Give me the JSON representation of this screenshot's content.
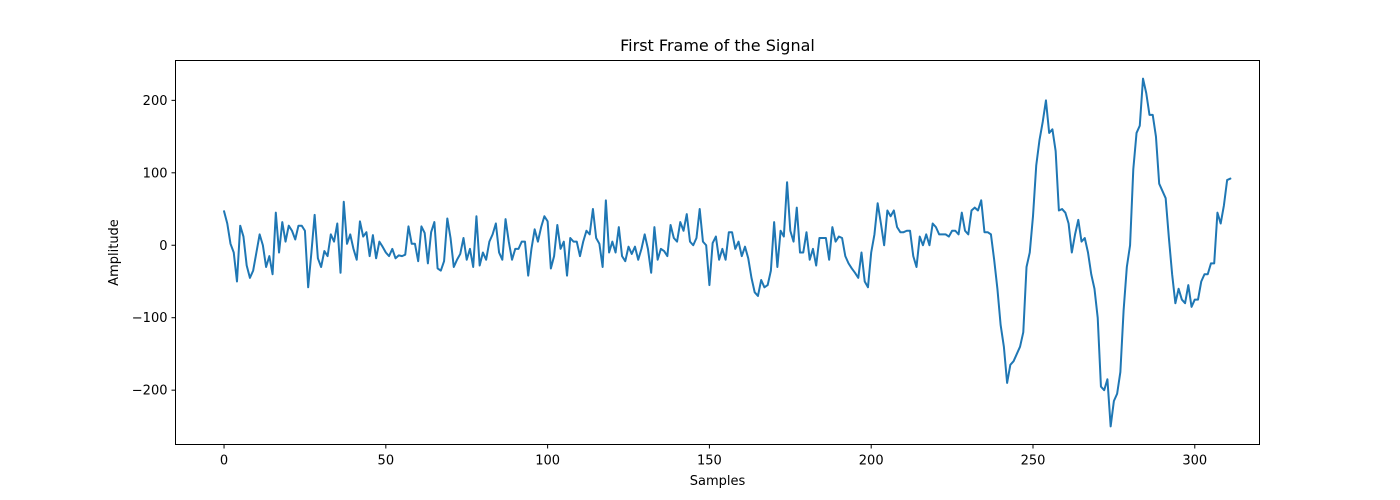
{
  "chart_data": {
    "type": "line",
    "title": "First Frame of the Signal",
    "xlabel": "Samples",
    "ylabel": "Amplitude",
    "xlim": [
      -15,
      320
    ],
    "ylim": [
      -275,
      255
    ],
    "xticks": [
      0,
      50,
      100,
      150,
      200,
      250,
      300
    ],
    "yticks": [
      -200,
      -100,
      0,
      100,
      200
    ],
    "grid": false,
    "series": [
      {
        "color": "#1f77b4",
        "values": [
          47,
          30,
          2,
          -10,
          -50,
          27,
          12,
          -28,
          -45,
          -35,
          -10,
          15,
          0,
          -30,
          -15,
          -40,
          45,
          -10,
          32,
          5,
          27,
          20,
          8,
          27,
          27,
          20,
          -58,
          -10,
          42,
          -18,
          -30,
          -8,
          -15,
          15,
          5,
          30,
          -38,
          60,
          2,
          15,
          -5,
          -20,
          33,
          12,
          18,
          -15,
          14,
          -18,
          5,
          -2,
          -10,
          -15,
          -5,
          -18,
          -14,
          -15,
          -13,
          26,
          2,
          2,
          -22,
          26,
          17,
          -25,
          18,
          32,
          -32,
          -35,
          -22,
          37,
          10,
          -30,
          -20,
          -12,
          10,
          -20,
          -5,
          -30,
          40,
          -28,
          -10,
          -20,
          5,
          15,
          30,
          -10,
          -20,
          36,
          5,
          -20,
          -5,
          -5,
          5,
          5,
          -42,
          -5,
          22,
          5,
          25,
          40,
          33,
          -32,
          -15,
          28,
          -5,
          5,
          -42,
          10,
          5,
          5,
          -15,
          5,
          20,
          15,
          50,
          10,
          2,
          -30,
          62,
          -10,
          5,
          -10,
          25,
          -15,
          -22,
          -2,
          -12,
          -2,
          -20,
          -5,
          15,
          -5,
          -38,
          25,
          -20,
          -5,
          -8,
          -15,
          28,
          10,
          5,
          32,
          20,
          43,
          5,
          0,
          10,
          50,
          5,
          0,
          -55,
          3,
          12,
          -20,
          -5,
          -20,
          18,
          18,
          -5,
          5,
          -15,
          -2,
          -18,
          -45,
          -65,
          -70,
          -48,
          -58,
          -55,
          -35,
          32,
          -30,
          20,
          12,
          87,
          20,
          5,
          52,
          -10,
          -10,
          18,
          -20,
          -5,
          -28,
          10,
          10,
          10,
          -20,
          25,
          5,
          12,
          10,
          -15,
          -25,
          -32,
          -38,
          -45,
          -10,
          -50,
          -58,
          -10,
          15,
          58,
          30,
          0,
          48,
          40,
          48,
          25,
          18,
          18,
          20,
          20,
          -15,
          -30,
          12,
          0,
          15,
          0,
          30,
          25,
          15,
          15,
          15,
          12,
          20,
          20,
          15,
          45,
          20,
          15,
          48,
          52,
          48,
          62,
          18,
          18,
          15,
          -20,
          -60,
          -110,
          -140,
          -190,
          -165,
          -160,
          -150,
          -140,
          -120,
          -30,
          -10,
          40,
          110,
          145,
          170,
          200,
          155,
          160,
          130,
          48,
          50,
          45,
          30,
          -10,
          15,
          35,
          5,
          10,
          -10,
          -40,
          -60,
          -100,
          -195,
          -200,
          -185,
          -250,
          -215,
          -205,
          -175,
          -90,
          -30,
          0,
          105,
          155,
          165,
          230,
          210,
          180,
          180,
          150,
          85,
          75,
          65,
          10,
          -40,
          -80,
          -60,
          -75,
          -80,
          -55,
          -85,
          -75,
          -75,
          -50,
          -40,
          -40,
          -25,
          -25,
          45,
          30,
          55,
          90,
          92
        ]
      }
    ]
  }
}
